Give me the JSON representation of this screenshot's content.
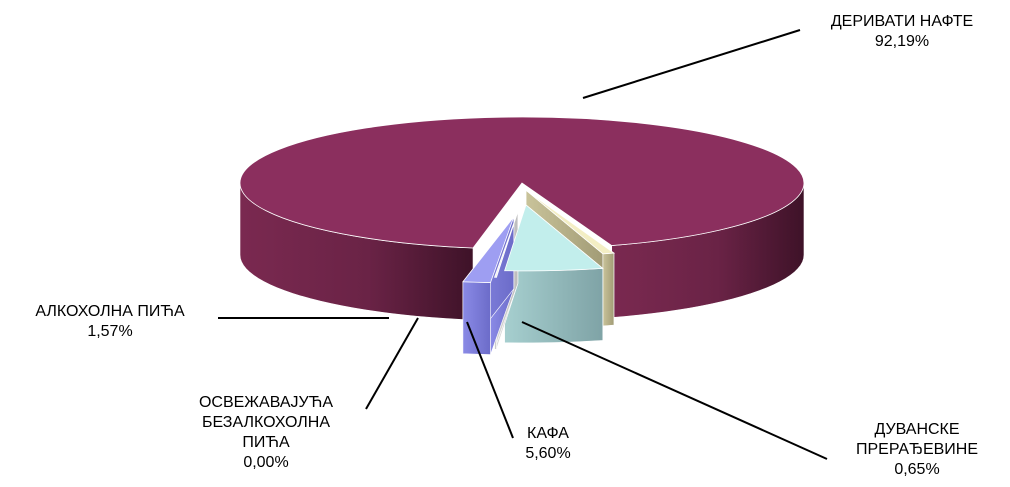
{
  "chart_data": {
    "type": "pie",
    "style": "3d-exploded",
    "legend": "none",
    "slices": [
      {
        "name": "ДЕРИВАТИ НАФТЕ",
        "label_lines": [
          "ДЕРИВАТИ НАФТЕ"
        ],
        "value": 92.19,
        "value_label": "92,19%",
        "color": "#8b2f5e"
      },
      {
        "name": "ДУВАНСКЕ ПРЕРАЂЕВИНЕ",
        "label_lines": [
          "ДУВАНСКЕ",
          "ПРЕРАЂЕВИНЕ"
        ],
        "value": 0.65,
        "value_label": "0,65%",
        "color": "#f3eec4"
      },
      {
        "name": "КАФА",
        "label_lines": [
          "КАФА"
        ],
        "value": 5.6,
        "value_label": "5,60%",
        "color": "#c2eeec"
      },
      {
        "name": "ОСВЕЖАВАЈУЋА БЕЗАЛКОХОЛНА ПИЋА",
        "label_lines": [
          "ОСВЕЖАВАЈУЋА",
          "БЕЗАЛКОХОЛНА",
          "ПИЋА"
        ],
        "value": 0.0,
        "value_label": "0,00%",
        "color": "#f0f0f0"
      },
      {
        "name": "АЛКОХОЛНА ПИЋА",
        "label_lines": [
          "АЛКОХОЛНА ПИЋА"
        ],
        "value": 1.57,
        "value_label": "1,57%",
        "color": "#9e9ef2"
      }
    ]
  }
}
